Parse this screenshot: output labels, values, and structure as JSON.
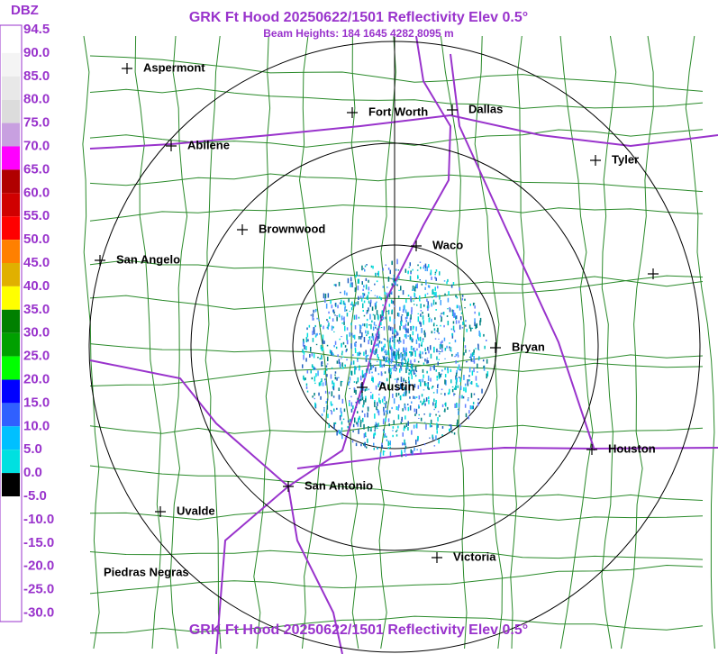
{
  "header": {
    "title": "GRK Ft Hood 20250622/1501 Reflectivity Elev 0.5°",
    "subtitle": "Beam Heights: 184 1645 4282 8095 m",
    "footer": "GRK Ft Hood 20250622/1501 Reflectivity Elev 0.5°"
  },
  "legend": {
    "unit": "DBZ",
    "labels": [
      "94.5",
      "90.0",
      "85.0",
      "80.0",
      "75.0",
      "70.0",
      "65.0",
      "60.0",
      "55.0",
      "50.0",
      "45.0",
      "40.0",
      "35.0",
      "30.0",
      "25.0",
      "20.0",
      "15.0",
      "10.0",
      "5.0",
      "0.0",
      "-5.0",
      "-10.0",
      "-15.0",
      "-20.0",
      "-25.0",
      "-30.0"
    ],
    "colors": [
      "#ffffff",
      "#f4f4f4",
      "#e8e8e8",
      "#dcdcdc",
      "#c8a0e0",
      "#ff00ff",
      "#b00000",
      "#d00000",
      "#ff0000",
      "#ff8000",
      "#e0b000",
      "#ffff00",
      "#008000",
      "#00a000",
      "#00ff00",
      "#0000ff",
      "#3060ff",
      "#00c0ff",
      "#00e0e0",
      "#000000",
      "#ffffff",
      "#ffffff",
      "#ffffff",
      "#ffffff",
      "#ffffff"
    ]
  },
  "cities": [
    {
      "name": "Aspermont"
    },
    {
      "name": "Fort Worth"
    },
    {
      "name": "Dallas"
    },
    {
      "name": "Abilene"
    },
    {
      "name": "Tyler"
    },
    {
      "name": "Brownwood"
    },
    {
      "name": "Waco"
    },
    {
      "name": "San Angelo"
    },
    {
      "name": "Bryan"
    },
    {
      "name": "Austin"
    },
    {
      "name": "Houston"
    },
    {
      "name": "San Antonio"
    },
    {
      "name": "Uvalde"
    },
    {
      "name": "Victoria"
    },
    {
      "name": "Piedras Negras"
    }
  ]
}
